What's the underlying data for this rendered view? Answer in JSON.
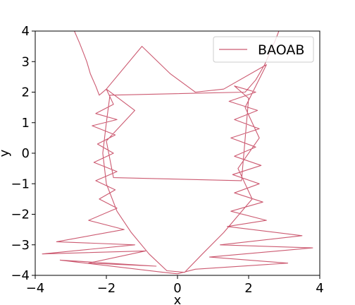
{
  "chart_data": {
    "type": "line",
    "title": "",
    "xlabel": "x",
    "ylabel": "y",
    "xlim": [
      -4,
      4
    ],
    "ylim": [
      -4,
      4
    ],
    "xticks": [
      -4,
      -2,
      0,
      2,
      4
    ],
    "yticks": [
      -4,
      -3,
      -2,
      -1,
      0,
      1,
      2,
      3,
      4
    ],
    "grid": false,
    "legend_position": "top-right",
    "series": [
      {
        "name": "BAOAB",
        "color": "#cc5a71",
        "points": [
          [
            -2.9,
            4.0
          ],
          [
            -2.75,
            3.6
          ],
          [
            -2.65,
            3.3
          ],
          [
            -2.55,
            3.0
          ],
          [
            -2.45,
            2.6
          ],
          [
            -2.3,
            2.2
          ],
          [
            -2.2,
            1.9
          ],
          [
            -2.0,
            2.1
          ],
          [
            -1.8,
            1.6
          ],
          [
            -2.3,
            1.3
          ],
          [
            -1.7,
            1.1
          ],
          [
            -2.4,
            0.9
          ],
          [
            -1.75,
            0.6
          ],
          [
            -2.25,
            0.3
          ],
          [
            -1.8,
            0.0
          ],
          [
            -2.35,
            -0.3
          ],
          [
            -1.7,
            -0.6
          ],
          [
            -2.3,
            -0.9
          ],
          [
            -1.75,
            -1.2
          ],
          [
            -2.2,
            -1.5
          ],
          [
            -1.7,
            -1.8
          ],
          [
            -2.5,
            -2.2
          ],
          [
            -1.5,
            -2.5
          ],
          [
            -3.4,
            -2.9
          ],
          [
            -1.2,
            -3.0
          ],
          [
            -3.8,
            -3.3
          ],
          [
            -0.9,
            -3.2
          ],
          [
            -2.5,
            -3.6
          ],
          [
            -0.6,
            -3.7
          ],
          [
            -3.3,
            -3.5
          ],
          [
            -0.4,
            -3.9
          ],
          [
            0.0,
            -3.95
          ],
          [
            0.5,
            -3.8
          ],
          [
            3.1,
            -3.6
          ],
          [
            0.9,
            -3.4
          ],
          [
            3.8,
            -3.1
          ],
          [
            1.2,
            -3.0
          ],
          [
            3.5,
            -2.7
          ],
          [
            1.4,
            -2.4
          ],
          [
            2.5,
            -2.2
          ],
          [
            1.5,
            -1.9
          ],
          [
            2.4,
            -1.6
          ],
          [
            1.6,
            -1.3
          ],
          [
            2.3,
            -1.0
          ],
          [
            1.55,
            -0.7
          ],
          [
            2.35,
            -0.4
          ],
          [
            1.6,
            -0.1
          ],
          [
            2.2,
            0.2
          ],
          [
            1.5,
            0.5
          ],
          [
            2.3,
            0.8
          ],
          [
            1.6,
            1.1
          ],
          [
            2.25,
            1.4
          ],
          [
            1.45,
            1.7
          ],
          [
            2.2,
            2.0
          ],
          [
            1.6,
            2.2
          ],
          [
            2.0,
            1.8
          ],
          [
            1.8,
            -0.9
          ],
          [
            -1.8,
            -0.8
          ],
          [
            -2.0,
            0.4
          ],
          [
            -1.2,
            1.4
          ],
          [
            -2.0,
            2.1
          ],
          [
            -1.0,
            3.5
          ],
          [
            -0.2,
            2.6
          ],
          [
            0.5,
            2.0
          ],
          [
            1.3,
            2.1
          ],
          [
            2.5,
            2.9
          ],
          [
            1.9,
            1.5
          ],
          [
            2.3,
            0.5
          ],
          [
            1.7,
            -0.5
          ],
          [
            2.1,
            -1.5
          ],
          [
            1.3,
            -2.6
          ],
          [
            0.7,
            -3.3
          ],
          [
            0.2,
            -3.9
          ],
          [
            -0.3,
            -3.85
          ],
          [
            -0.8,
            -3.3
          ],
          [
            -1.3,
            -2.6
          ],
          [
            -1.7,
            -1.9
          ],
          [
            -2.0,
            -1.0
          ],
          [
            -2.1,
            0.0
          ],
          [
            -2.0,
            1.0
          ],
          [
            -1.9,
            1.9
          ],
          [
            1.9,
            2.0
          ],
          [
            2.2,
            2.4
          ],
          [
            2.45,
            2.9
          ],
          [
            2.6,
            3.3
          ],
          [
            2.75,
            3.7
          ],
          [
            2.85,
            4.0
          ]
        ]
      }
    ]
  }
}
